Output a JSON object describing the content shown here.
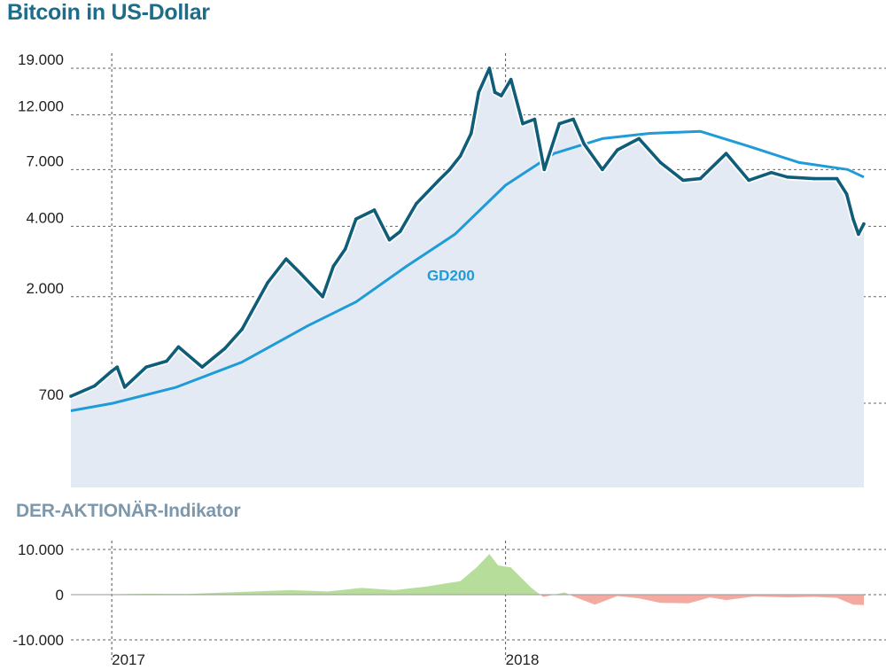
{
  "title": "Bitcoin in US-Dollar",
  "subtitle": "DER-AKTIONÄR-Indikator",
  "colors": {
    "title": "#1d6c8a",
    "subtitle": "#7d97ab",
    "price_line": "#0f5d78",
    "gd200_line": "#1f9bd7",
    "area_fill": "#e4eaf3",
    "positive_fill": "#b7dd9a",
    "negative_fill": "#f4aaa0"
  },
  "chart_data": [
    {
      "type": "line",
      "scale": "log",
      "ylim": [
        400,
        20000
      ],
      "yticks": [
        700,
        2000,
        4000,
        7000,
        12000,
        19000
      ],
      "ytick_labels": [
        "700",
        "2.000",
        "4.000",
        "7.000",
        "12.000",
        "19.000"
      ],
      "xlim": [
        "2016-11-23",
        "2018-11-30"
      ],
      "xticks": [
        "2016-12-31",
        "2018-01-01"
      ],
      "xtick_labels": [
        "2017",
        "2018"
      ],
      "grid": true,
      "series": [
        {
          "style": "price",
          "x": [
            "2016-11-23",
            "2016-12-15",
            "2016-12-31",
            "2017-01-05",
            "2017-01-12",
            "2017-02-01",
            "2017-02-20",
            "2017-03-03",
            "2017-03-25",
            "2017-04-15",
            "2017-05-01",
            "2017-05-25",
            "2017-06-11",
            "2017-06-25",
            "2017-07-15",
            "2017-07-25",
            "2017-08-05",
            "2017-08-15",
            "2017-09-01",
            "2017-09-15",
            "2017-09-25",
            "2017-10-10",
            "2017-10-31",
            "2017-11-10",
            "2017-11-20",
            "2017-11-30",
            "2017-12-07",
            "2017-12-17",
            "2017-12-22",
            "2017-12-28",
            "2018-01-06",
            "2018-01-17",
            "2018-01-28",
            "2018-02-06",
            "2018-02-20",
            "2018-03-05",
            "2018-03-15",
            "2018-04-01",
            "2018-04-15",
            "2018-05-05",
            "2018-05-25",
            "2018-06-15",
            "2018-07-01",
            "2018-07-25",
            "2018-08-15",
            "2018-09-05",
            "2018-09-20",
            "2018-10-15",
            "2018-11-05",
            "2018-11-14",
            "2018-11-20",
            "2018-11-25",
            "2018-11-30"
          ],
          "values": [
            750,
            830,
            960,
            1000,
            820,
            1000,
            1060,
            1220,
            1000,
            1200,
            1450,
            2300,
            2900,
            2500,
            2000,
            2700,
            3200,
            4300,
            4700,
            3500,
            3800,
            5000,
            6300,
            7000,
            8000,
            10000,
            15000,
            19000,
            15000,
            14500,
            17000,
            11000,
            11500,
            7000,
            11000,
            11500,
            9000,
            7000,
            8500,
            9500,
            7500,
            6300,
            6400,
            8200,
            6300,
            6800,
            6500,
            6400,
            6400,
            5500,
            4300,
            3700,
            4100
          ]
        },
        {
          "name": "GD200",
          "style": "moving-average",
          "x": [
            "2016-11-23",
            "2017-01-01",
            "2017-03-01",
            "2017-05-01",
            "2017-07-01",
            "2017-08-15",
            "2017-10-01",
            "2017-11-15",
            "2018-01-01",
            "2018-02-15",
            "2018-04-01",
            "2018-05-15",
            "2018-07-01",
            "2018-08-15",
            "2018-10-01",
            "2018-11-15",
            "2018-11-30"
          ],
          "values": [
            650,
            700,
            820,
            1050,
            1500,
            1900,
            2700,
            3700,
            6000,
            8200,
            9500,
            10000,
            10200,
            8800,
            7500,
            7000,
            6500
          ]
        }
      ],
      "annotations": [
        {
          "text": "GD200",
          "x": "2017-10-20",
          "y": 2350
        }
      ]
    },
    {
      "type": "area",
      "ylim": [
        -10000,
        10000
      ],
      "yticks": [
        -10000,
        0,
        10000
      ],
      "ytick_labels": [
        "-10.000",
        "0",
        "10.000"
      ],
      "xlim": [
        "2016-11-23",
        "2018-11-30"
      ],
      "xticks": [
        "2016-12-31",
        "2018-01-01"
      ],
      "xtick_labels": [
        "2017",
        "2018"
      ],
      "grid": true,
      "x": [
        "2016-11-23",
        "2017-02-01",
        "2017-03-10",
        "2017-05-01",
        "2017-06-15",
        "2017-07-20",
        "2017-08-20",
        "2017-09-20",
        "2017-10-20",
        "2017-11-20",
        "2017-12-05",
        "2017-12-17",
        "2017-12-25",
        "2018-01-06",
        "2018-01-25",
        "2018-02-05",
        "2018-02-25",
        "2018-03-05",
        "2018-03-25",
        "2018-04-15",
        "2018-05-05",
        "2018-05-25",
        "2018-06-20",
        "2018-07-10",
        "2018-07-25",
        "2018-08-20",
        "2018-09-20",
        "2018-10-15",
        "2018-11-05",
        "2018-11-20",
        "2018-11-30"
      ],
      "values": [
        0,
        200,
        150,
        600,
        1000,
        700,
        1500,
        1000,
        1800,
        3000,
        6000,
        9000,
        6500,
        6000,
        1500,
        -500,
        500,
        -400,
        -2200,
        -300,
        -800,
        -1800,
        -1900,
        -600,
        -1200,
        -400,
        -600,
        -500,
        -700,
        -2200,
        -2300
      ]
    }
  ]
}
